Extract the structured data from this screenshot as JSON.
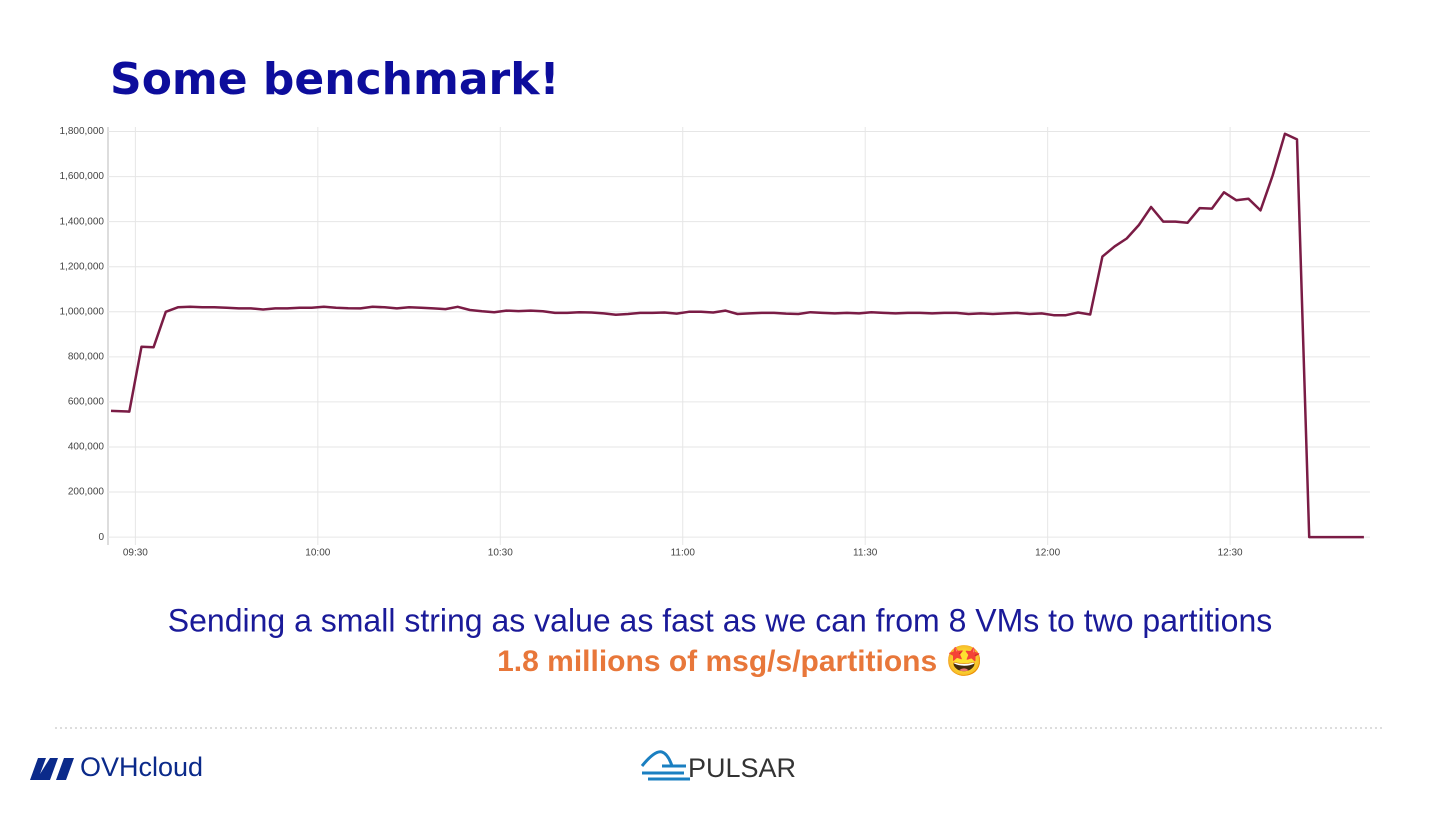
{
  "chart_data": {
    "type": "line",
    "title": "Some benchmark!",
    "x": [
      566,
      569,
      571,
      573,
      575,
      577,
      579,
      581,
      583,
      585,
      587,
      589,
      591,
      593,
      595,
      597,
      599,
      601,
      603,
      605,
      607,
      609,
      611,
      613,
      615,
      617,
      619,
      621,
      623,
      625,
      627,
      629,
      631,
      633,
      635,
      637,
      639,
      641,
      643,
      645,
      647,
      649,
      651,
      653,
      655,
      657,
      659,
      661,
      663,
      665,
      667,
      669,
      671,
      673,
      675,
      677,
      679,
      681,
      683,
      685,
      687,
      689,
      691,
      693,
      695,
      697,
      699,
      701,
      703,
      705,
      707,
      709,
      711,
      713,
      715,
      717,
      719,
      721,
      723,
      725,
      727,
      729,
      731,
      733,
      735,
      737,
      739,
      741,
      743,
      745,
      747,
      749,
      751,
      753,
      755,
      757,
      759,
      761,
      763,
      765,
      767,
      769,
      771,
      772
    ],
    "series": [
      {
        "color": "#7a1c45",
        "values": [
          560000,
          557000,
          845000,
          843000,
          1000000,
          1020000,
          1022000,
          1020000,
          1020000,
          1018000,
          1015000,
          1015000,
          1010000,
          1015000,
          1015000,
          1018000,
          1018000,
          1022000,
          1018000,
          1016000,
          1015000,
          1022000,
          1020000,
          1015000,
          1020000,
          1018000,
          1015000,
          1012000,
          1022000,
          1008000,
          1002000,
          998000,
          1005000,
          1003000,
          1005000,
          1002000,
          995000,
          995000,
          998000,
          997000,
          993000,
          987000,
          990000,
          995000,
          995000,
          997000,
          992000,
          1000000,
          1000000,
          997000,
          1005000,
          990000,
          993000,
          995000,
          995000,
          992000,
          990000,
          998000,
          995000,
          993000,
          995000,
          993000,
          998000,
          995000,
          993000,
          995000,
          995000,
          993000,
          995000,
          995000,
          990000,
          993000,
          990000,
          993000,
          995000,
          990000,
          993000,
          985000,
          985000,
          997000,
          988000,
          1245000,
          1290000,
          1325000,
          1385000,
          1465000,
          1400000,
          1400000,
          1395000,
          1460000,
          1458000,
          1530000,
          1495000,
          1502000,
          1450000,
          1605000,
          1790000,
          1765000,
          0,
          0,
          0,
          0,
          0,
          0
        ]
      }
    ],
    "xlim": [
      565.5,
      773
    ],
    "xticks": [
      {
        "value": 570,
        "label": "09:30"
      },
      {
        "value": 600,
        "label": "10:00"
      },
      {
        "value": 630,
        "label": "10:30"
      },
      {
        "value": 660,
        "label": "11:00"
      },
      {
        "value": 690,
        "label": "11:30"
      },
      {
        "value": 720,
        "label": "12:00"
      },
      {
        "value": 750,
        "label": "12:30"
      }
    ],
    "ylim": [
      -35000,
      1820000
    ],
    "yticks": [
      0,
      {
        "value": 200000,
        "label": "200,000"
      },
      {
        "value": 400000,
        "label": "400,000"
      },
      {
        "value": 600000,
        "label": "600,000"
      },
      {
        "value": 800000,
        "label": "800,000"
      },
      {
        "value": 1000000,
        "label": "1,000,000"
      },
      {
        "value": 1200000,
        "label": "1,200,000"
      },
      {
        "value": 1400000,
        "label": "1,400,000"
      },
      {
        "value": 1600000,
        "label": "1,600,000"
      },
      {
        "value": 1800000,
        "label": "1,800,000"
      }
    ],
    "grid": true
  },
  "caption": "Sending a small string as value as fast as we can from 8 VMs to two partitions",
  "highlight": "1.8 millions of msg/s/partitions 🤩",
  "footer": {
    "left_logo": "OVHcloud",
    "center_logo": "PULSAR"
  }
}
